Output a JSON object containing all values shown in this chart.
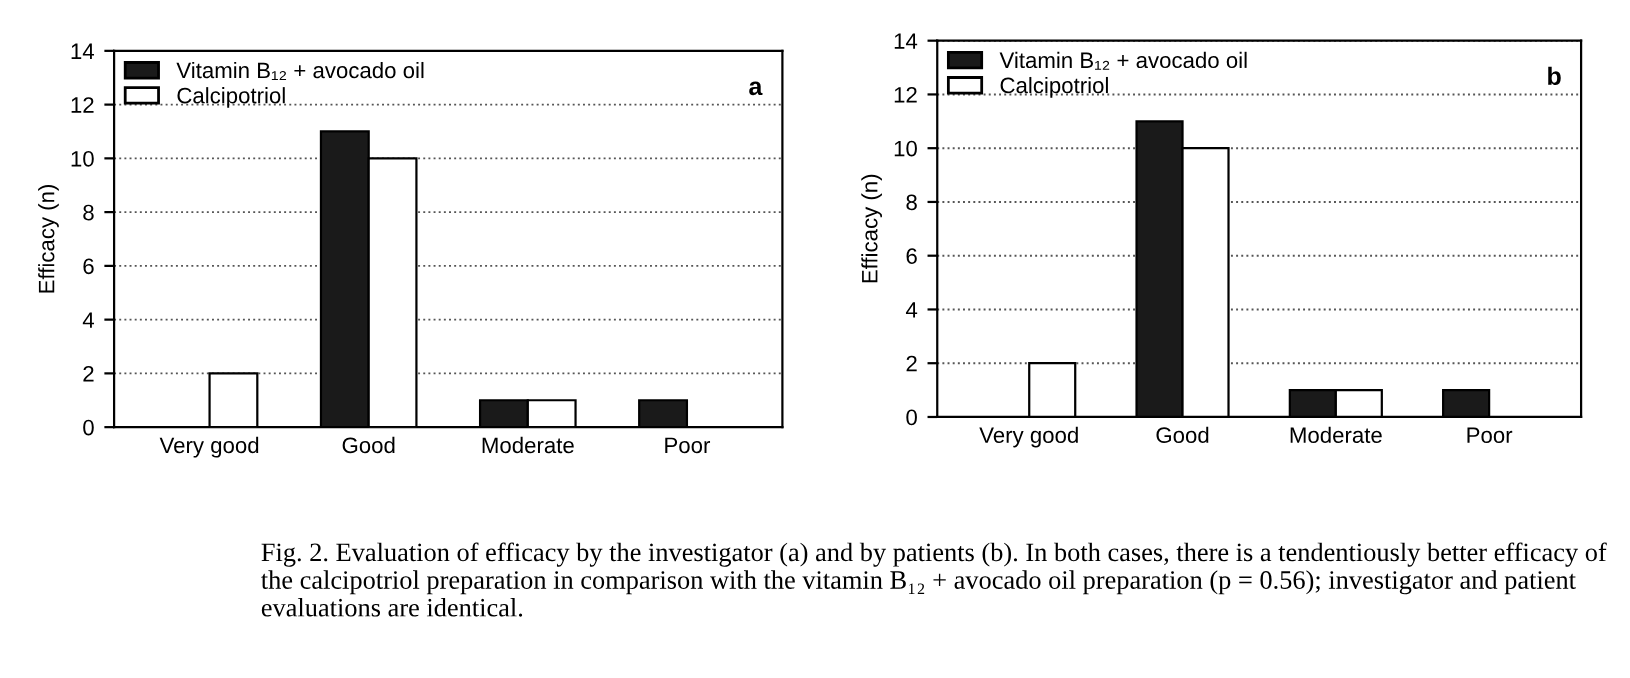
{
  "chart_data": [
    {
      "type": "bar",
      "ylabel": "Efficacy (n)",
      "categories": [
        "Very good",
        "Good",
        "Moderate",
        "Poor"
      ],
      "series": [
        {
          "name": "Vitamin B₁₂ + avocado oil",
          "color": "#1a1a1a",
          "values": [
            null,
            11,
            1,
            1
          ]
        },
        {
          "name": "Calcipotriol",
          "color": "#ffffff",
          "values": [
            2,
            10,
            1,
            null
          ]
        }
      ],
      "ylim": [
        0,
        14
      ],
      "yticks": [
        0,
        2,
        4,
        6,
        8,
        10,
        12,
        14
      ],
      "grid": "y",
      "legend": "top left",
      "annotations": [
        "a"
      ]
    },
    {
      "type": "bar",
      "ylabel": "Efficacy (n)",
      "categories": [
        "Very good",
        "Good",
        "Moderate",
        "Poor"
      ],
      "series": [
        {
          "name": "Vitamin B₁₂ + avocado oil",
          "color": "#1a1a1a",
          "values": [
            null,
            11,
            1,
            1
          ]
        },
        {
          "name": "Calcipotriol",
          "color": "#ffffff",
          "values": [
            2,
            10,
            1,
            null
          ]
        }
      ],
      "ylim": [
        0,
        14
      ],
      "yticks": [
        0,
        2,
        4,
        6,
        8,
        10,
        12,
        14
      ],
      "grid": "y",
      "legend": "top left",
      "annotations": [
        "b",
        "Fig. 2. Evaluation of efficacy by the investigator (a) and by patients (b). In both cases, there is a tendentiously better efficacy of the calcipotriol preparation in comparison with the vitamin B₁₂ + avocado oil preparation (p = 0.56); investigator and patient evaluations are identical."
      ]
    }
  ]
}
